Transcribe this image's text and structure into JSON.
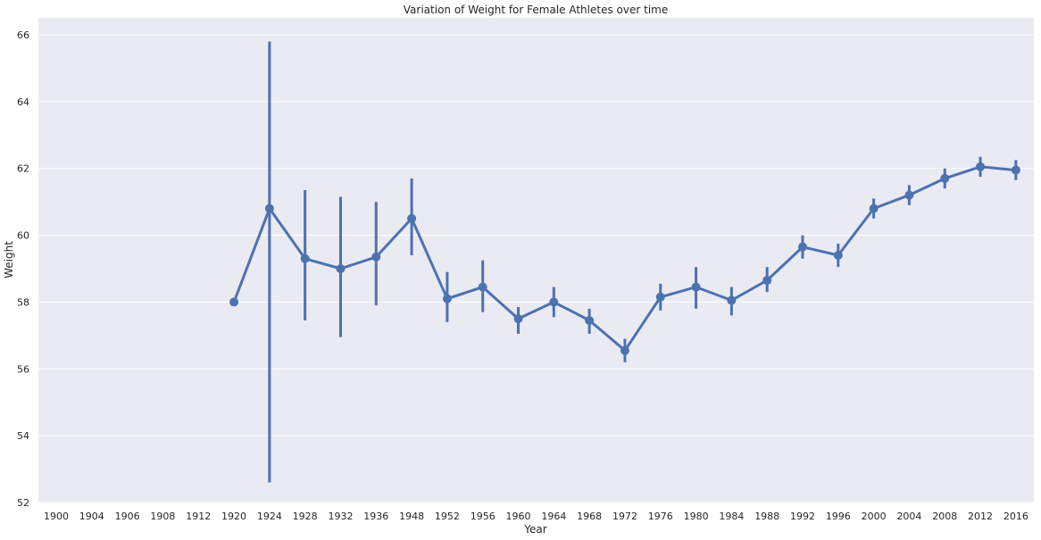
{
  "chart_data": {
    "type": "line",
    "title": "Variation of Weight for Female Athletes over time",
    "xlabel": "Year",
    "ylabel": "Weight",
    "ylim": [
      52,
      66.3
    ],
    "yticks": [
      52,
      54,
      56,
      58,
      60,
      62,
      64,
      66
    ],
    "grid": true,
    "categories": [
      "1900",
      "1904",
      "1906",
      "1908",
      "1912",
      "1920",
      "1924",
      "1928",
      "1932",
      "1936",
      "1948",
      "1952",
      "1956",
      "1960",
      "1964",
      "1968",
      "1972",
      "1976",
      "1980",
      "1984",
      "1988",
      "1992",
      "1996",
      "2000",
      "2004",
      "2008",
      "2012",
      "2016"
    ],
    "series": [
      {
        "color": "#4c72b0",
        "values": [
          null,
          null,
          null,
          null,
          null,
          58.0,
          60.8,
          59.3,
          59.0,
          59.35,
          60.5,
          58.1,
          58.45,
          57.5,
          58.0,
          57.45,
          56.55,
          58.15,
          58.45,
          58.05,
          58.65,
          59.65,
          59.4,
          60.8,
          61.2,
          61.7,
          62.05,
          61.95
        ],
        "ci_low": [
          null,
          null,
          null,
          null,
          null,
          58.0,
          52.6,
          57.45,
          56.95,
          57.9,
          59.4,
          57.4,
          57.7,
          57.05,
          57.55,
          57.05,
          56.2,
          57.75,
          57.8,
          57.6,
          58.3,
          59.3,
          59.05,
          60.5,
          60.9,
          61.4,
          61.75,
          61.65
        ],
        "ci_high": [
          null,
          null,
          null,
          null,
          null,
          58.0,
          65.8,
          61.35,
          61.15,
          61.0,
          61.7,
          58.9,
          59.25,
          57.85,
          58.45,
          57.8,
          56.9,
          58.55,
          59.05,
          58.45,
          59.05,
          60.0,
          59.75,
          61.1,
          61.5,
          62.0,
          62.35,
          62.25
        ]
      }
    ]
  }
}
